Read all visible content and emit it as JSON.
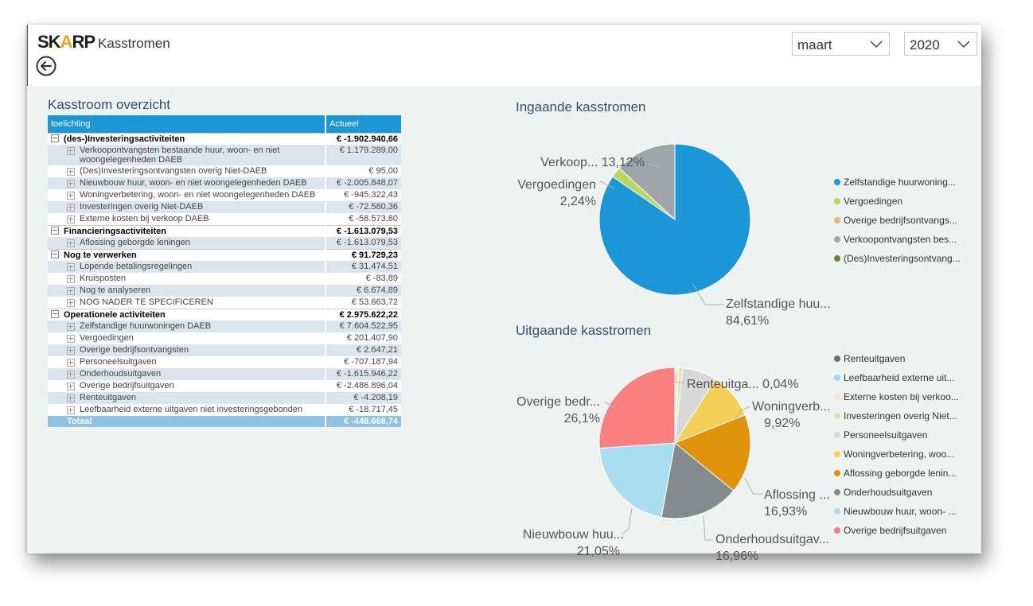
{
  "app": {
    "logo_main": "SK",
    "logo_accent": "A",
    "logo_tail": "RP",
    "title": "Kasstromen"
  },
  "filters": {
    "month": "maart",
    "year": "2020"
  },
  "matrix": {
    "title": "Kasstroom overzicht",
    "columns": [
      "toelichting",
      "Actueel"
    ],
    "groups": [
      {
        "label": "(des-)Investeringsactiviteiten",
        "value": "€ -1.902.940,66",
        "rows": [
          {
            "label": "Verkoopontvangsten bestaande huur, woon- en niet woongelegenheden DAEB",
            "value": "€ 1.179.289,00"
          },
          {
            "label": "(Des)Investeringsontvangsten overig Niet-DAEB",
            "value": "€ 95,00"
          },
          {
            "label": "Nieuwbouw huur, woon- en niet woongelegenheden DAEB",
            "value": "€ -2.005.848,07"
          },
          {
            "label": "Woningverbetering, woon- en niet woongelegenheden DAEB",
            "value": "€ -945.322,43"
          },
          {
            "label": "Investeringen overig Niet-DAEB",
            "value": "€ -72.580,36"
          },
          {
            "label": "Externe kosten bij verkoop DAEB",
            "value": "€ -58.573,80"
          }
        ]
      },
      {
        "label": "Financieringsactiviteiten",
        "value": "€ -1.613.079,53",
        "rows": [
          {
            "label": "Aflossing geborgde leningen",
            "value": "€ -1.613.079,53"
          }
        ]
      },
      {
        "label": "Nog te verwerken",
        "value": "€ 91.729,23",
        "rows": [
          {
            "label": "Lopende betalingsregelingen",
            "value": "€ 31.474,51"
          },
          {
            "label": "Kruisposten",
            "value": "€ -83,89"
          },
          {
            "label": "Nog te analyseren",
            "value": "€ 6.674,89"
          },
          {
            "label": "NOG NADER TE SPECIFICEREN",
            "value": "€ 53.663,72"
          }
        ]
      },
      {
        "label": "Operationele activiteiten",
        "value": "€ 2.975.622,22",
        "rows": [
          {
            "label": "Zelfstandige huurwoningen DAEB",
            "value": "€ 7.604.522,95"
          },
          {
            "label": "Vergoedingen",
            "value": "€ 201.407,90"
          },
          {
            "label": "Overige bedrijfsontvangsten",
            "value": "€ 2.647,21"
          },
          {
            "label": "Personeelsuitgaven",
            "value": "€ -707.187,94"
          },
          {
            "label": "Onderhoudsuitgaven",
            "value": "€ -1.615.946,22"
          },
          {
            "label": "Overige bedrijfsuitgaven",
            "value": "€ -2.486.896,04"
          },
          {
            "label": "Renteuitgaven",
            "value": "€ -4.208,19"
          },
          {
            "label": "Leefbaarheid externe uitgaven niet investeringsgebonden",
            "value": "€ -18.717,45"
          }
        ]
      }
    ],
    "total_label": "Totaal",
    "total_value": "€ -448.668,74"
  },
  "chart_data": [
    {
      "type": "pie",
      "title": "Ingaande kasstromen",
      "slices": [
        {
          "label": "Zelfstandige huurwoningen DAEB",
          "value": 84.61,
          "color": "#1b96d6"
        },
        {
          "label": "Vergoedingen",
          "value": 2.24,
          "color": "#b5d95a"
        },
        {
          "label": "Overige bedrijfsontvangsten",
          "value": 0.03,
          "color": "#f5b26b"
        },
        {
          "label": "Verkoopontvangsten bestaande",
          "value": 13.12,
          "color": "#a0a5aa"
        },
        {
          "label": "(Des)Investeringsontvangsten",
          "value": 0.0,
          "color": "#5a8a2e"
        }
      ],
      "slice_labels": [
        {
          "line1": "Zelfstandige huu...",
          "line2": "84,61%"
        },
        {
          "line1": "Vergoedingen",
          "line2": "2,24%"
        },
        {
          "line1": "Verkoop... 13,12%",
          "line2": ""
        }
      ],
      "legend": [
        "Zelfstandige huurwoning...",
        "Vergoedingen",
        "Overige bedrijfsontvangs...",
        "Verkoopontvangsten bes...",
        "(Des)Investeringsontvang..."
      ]
    },
    {
      "type": "pie",
      "title": "Uitgaande kasstromen",
      "slices": [
        {
          "label": "Renteuitgaven",
          "value": 0.04,
          "color": "#707070"
        },
        {
          "label": "Leefbaarheid externe uitgaven",
          "value": 0.2,
          "color": "#a8d8ee"
        },
        {
          "label": "Externe kosten bij verkoop",
          "value": 0.6,
          "color": "#fbe5c8"
        },
        {
          "label": "Investeringen overig Niet-DAEB",
          "value": 0.8,
          "color": "#d4eba3"
        },
        {
          "label": "Personeelsuitgaven",
          "value": 7.4,
          "color": "#d8d8d8"
        },
        {
          "label": "Woningverbetering",
          "value": 9.92,
          "color": "#f4d058"
        },
        {
          "label": "Aflossing geborgde leningen",
          "value": 16.93,
          "color": "#e0940c"
        },
        {
          "label": "Onderhoudsuitgaven",
          "value": 16.96,
          "color": "#858a8e"
        },
        {
          "label": "Nieuwbouw huur, woon-",
          "value": 21.05,
          "color": "#a9def0"
        },
        {
          "label": "Overige bedrijfsuitgaven",
          "value": 26.1,
          "color": "#fa8080"
        }
      ],
      "slice_labels": [
        {
          "line1": "Renteuitga... 0,04%",
          "line2": ""
        },
        {
          "line1": "Woningverb...",
          "line2": "9,92%"
        },
        {
          "line1": "Aflossing ...",
          "line2": "16,93%"
        },
        {
          "line1": "Onderhoudsuitgav...",
          "line2": "16,96%"
        },
        {
          "line1": "Nieuwbouw huu...",
          "line2": "21,05%"
        },
        {
          "line1": "Overige bedr...",
          "line2": "26,1%"
        }
      ],
      "legend": [
        "Renteuitgaven",
        "Leefbaarheid externe uit...",
        "Externe kosten bij verkoo...",
        "Investeringen overig Niet...",
        "Personeelsuitgaven",
        "Woningverbetering, woo...",
        "Aflossing geborgde lenin...",
        "Onderhoudsuitgaven",
        "Nieuwbouw huur, woon- ...",
        "Overige bedrijfsuitgaven"
      ]
    }
  ]
}
